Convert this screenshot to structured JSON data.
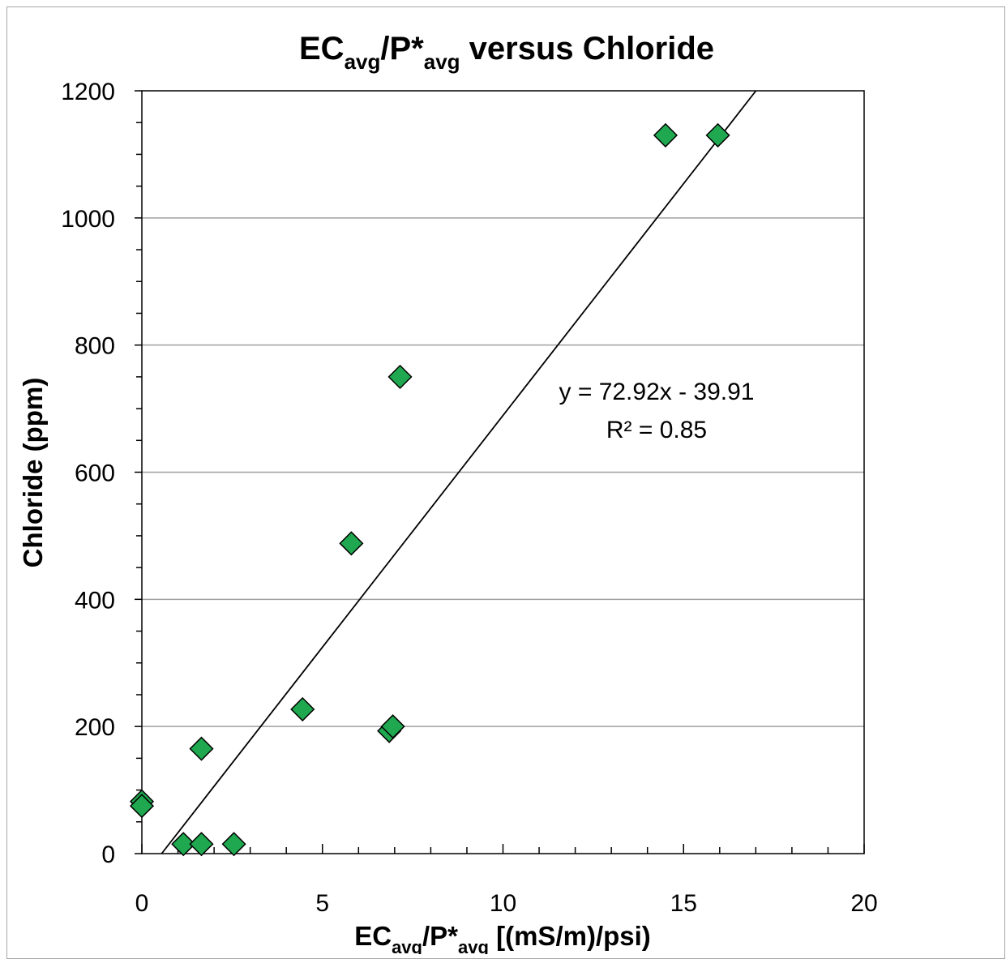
{
  "chart_data": {
    "type": "scatter",
    "title": {
      "main": "EC",
      "sub1": "avg",
      "mid": "/P*",
      "sub2": "avg",
      "tail": " versus Chloride"
    },
    "xlabel": {
      "main": "EC",
      "sub1": "avg",
      "mid": "/P*",
      "sub2": "avg",
      "tail": " [(mS/m)/psi)"
    },
    "ylabel": "Chloride (ppm)",
    "xlim": [
      0,
      20
    ],
    "ylim": [
      0,
      1200
    ],
    "xticks": [
      0,
      5,
      10,
      15,
      20
    ],
    "yticks": [
      0,
      200,
      400,
      600,
      800,
      1000,
      1200
    ],
    "x_minor_step": 1,
    "y_minor_step": 50,
    "grid": "horizontal-major",
    "points": [
      {
        "x": 0.0,
        "y": 82
      },
      {
        "x": 0.0,
        "y": 75
      },
      {
        "x": 1.15,
        "y": 15
      },
      {
        "x": 1.65,
        "y": 15
      },
      {
        "x": 2.55,
        "y": 15
      },
      {
        "x": 1.65,
        "y": 165
      },
      {
        "x": 4.45,
        "y": 227
      },
      {
        "x": 6.85,
        "y": 193
      },
      {
        "x": 6.95,
        "y": 200
      },
      {
        "x": 5.8,
        "y": 488
      },
      {
        "x": 7.15,
        "y": 750
      },
      {
        "x": 14.5,
        "y": 1130
      },
      {
        "x": 15.95,
        "y": 1130
      }
    ],
    "marker": {
      "shape": "diamond",
      "color": "#1fa84f",
      "edge": "#000000"
    },
    "trendline": {
      "slope": 72.92,
      "intercept": -39.91,
      "color": "#000000"
    },
    "annotations": {
      "equation": "y = 72.92x - 39.91",
      "r2": "R² = 0.85"
    }
  }
}
